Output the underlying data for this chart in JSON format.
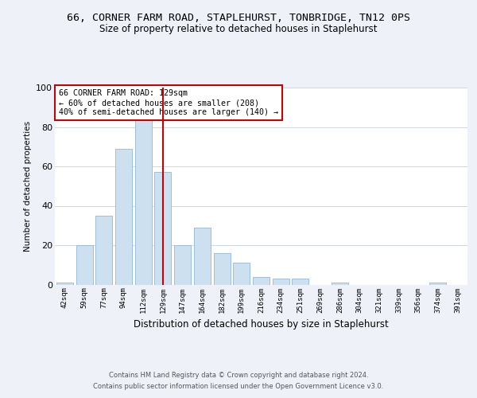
{
  "title": "66, CORNER FARM ROAD, STAPLEHURST, TONBRIDGE, TN12 0PS",
  "subtitle": "Size of property relative to detached houses in Staplehurst",
  "xlabel": "Distribution of detached houses by size in Staplehurst",
  "ylabel": "Number of detached properties",
  "bar_labels": [
    "42sqm",
    "59sqm",
    "77sqm",
    "94sqm",
    "112sqm",
    "129sqm",
    "147sqm",
    "164sqm",
    "182sqm",
    "199sqm",
    "216sqm",
    "234sqm",
    "251sqm",
    "269sqm",
    "286sqm",
    "304sqm",
    "321sqm",
    "339sqm",
    "356sqm",
    "374sqm",
    "391sqm"
  ],
  "bar_values": [
    1,
    20,
    35,
    69,
    85,
    57,
    20,
    29,
    16,
    11,
    4,
    3,
    3,
    0,
    1,
    0,
    0,
    0,
    0,
    1,
    0
  ],
  "bar_color": "#cce0f0",
  "bar_edge_color": "#90b8d8",
  "property_index": 5,
  "red_line_color": "#cc0000",
  "annotation_text": "66 CORNER FARM ROAD: 129sqm\n← 60% of detached houses are smaller (208)\n40% of semi-detached houses are larger (140) →",
  "ylim": [
    0,
    100
  ],
  "yticks": [
    0,
    20,
    40,
    60,
    80,
    100
  ],
  "footer1": "Contains HM Land Registry data © Crown copyright and database right 2024.",
  "footer2": "Contains public sector information licensed under the Open Government Licence v3.0.",
  "background_color": "#eef2f8",
  "plot_bg_color": "#ffffff",
  "grid_color": "#d0d8e0"
}
